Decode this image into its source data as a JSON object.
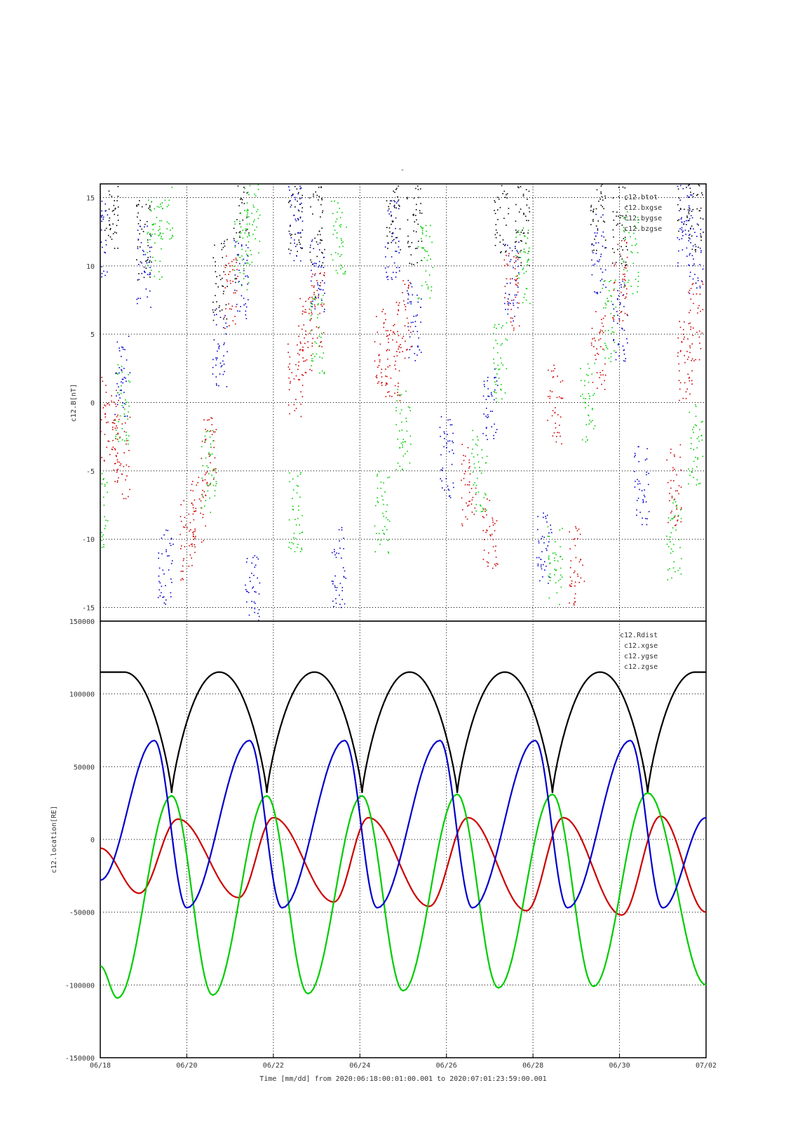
{
  "page_title_mark": "-",
  "colors": {
    "btot": "#000000",
    "bxgse": "#cc0000",
    "bygse": "#00cc00",
    "bzgse": "#0000cc",
    "grid": "#000000",
    "frame": "#000000"
  },
  "chart_data": [
    {
      "type": "scatter",
      "title": "-",
      "xlabel": "",
      "ylabel": "c12.B[nT]",
      "xlim": [
        "2020-06-18",
        "2020-07-02"
      ],
      "ylim": [
        -16,
        16
      ],
      "y_ticks": [
        -15,
        -10,
        -5,
        0,
        5,
        10,
        15
      ],
      "grid": true,
      "legend_position": "top-right",
      "series": [
        {
          "name": "c12.btot",
          "color": "#000000",
          "x": [
            "2020-06-18 06:00",
            "2020-06-19 00:00",
            "2020-06-20 18:00",
            "2020-06-21 06:00",
            "2020-06-22 12:00",
            "2020-06-23 00:00",
            "2020-06-24 18:00",
            "2020-06-25 06:00",
            "2020-06-27 06:00",
            "2020-06-27 18:00",
            "2020-06-29 12:00",
            "2020-06-30 00:00",
            "2020-07-01 12:00",
            "2020-07-01 18:00"
          ],
          "y": [
            14,
            12,
            9,
            15,
            14,
            13,
            14,
            13,
            14,
            13,
            14,
            13,
            15,
            14
          ]
        },
        {
          "name": "c12.bxgse",
          "color": "#cc0000",
          "x": [
            "2020-06-18 00:00",
            "2020-06-18 06:00",
            "2020-06-18 12:00",
            "2020-06-20 00:00",
            "2020-06-20 06:00",
            "2020-06-20 12:00",
            "2020-06-21 00:00",
            "2020-06-22 12:00",
            "2020-06-22 18:00",
            "2020-06-23 00:00",
            "2020-06-24 12:00",
            "2020-06-24 18:00",
            "2020-06-25 00:00",
            "2020-06-26 12:00",
            "2020-06-27 00:00",
            "2020-06-27 12:00",
            "2020-06-28 12:00",
            "2020-06-29 00:00",
            "2020-06-29 12:00",
            "2020-06-30 00:00",
            "2020-07-01 06:00",
            "2020-07-01 12:00",
            "2020-07-01 18:00"
          ],
          "y": [
            -1,
            -2,
            -4,
            -10,
            -8,
            -4,
            8,
            2,
            5,
            7,
            4,
            3,
            6,
            -6,
            -10,
            8,
            0,
            -12,
            4,
            9,
            -6,
            3,
            6
          ]
        },
        {
          "name": "c12.bygse",
          "color": "#00cc00",
          "x": [
            "2020-06-18 00:00",
            "2020-06-18 12:00",
            "2020-06-19 06:00",
            "2020-06-19 12:00",
            "2020-06-20 12:00",
            "2020-06-21 06:00",
            "2020-06-21 12:00",
            "2020-06-22 12:00",
            "2020-06-23 00:00",
            "2020-06-23 12:00",
            "2020-06-24 12:00",
            "2020-06-25 00:00",
            "2020-06-25 12:00",
            "2020-06-26 18:00",
            "2020-06-27 06:00",
            "2020-06-27 18:00",
            "2020-06-28 12:00",
            "2020-06-29 06:00",
            "2020-06-29 18:00",
            "2020-06-30 06:00",
            "2020-07-01 06:00",
            "2020-07-01 18:00"
          ],
          "y": [
            -8,
            0,
            12,
            15,
            -5,
            11,
            13,
            -8,
            5,
            12,
            -8,
            -2,
            10,
            -5,
            3,
            10,
            -12,
            0,
            6,
            11,
            -10,
            -3
          ]
        },
        {
          "name": "c12.bzgse",
          "color": "#0000cc",
          "x": [
            "2020-06-18 00:00",
            "2020-06-18 12:00",
            "2020-06-19 00:00",
            "2020-06-19 12:00",
            "2020-06-20 18:00",
            "2020-06-21 06:00",
            "2020-06-21 12:00",
            "2020-06-22 12:00",
            "2020-06-23 00:00",
            "2020-06-23 12:00",
            "2020-06-24 18:00",
            "2020-06-25 06:00",
            "2020-06-26 00:00",
            "2020-06-27 00:00",
            "2020-06-27 12:00",
            "2020-06-28 06:00",
            "2020-06-29 12:00",
            "2020-06-30 00:00",
            "2020-06-30 12:00",
            "2020-07-01 12:00",
            "2020-07-01 18:00"
          ],
          "y": [
            12,
            2,
            10,
            -12,
            4,
            9,
            -14,
            13,
            9,
            -12,
            12,
            6,
            -4,
            0,
            9,
            -11,
            11,
            6,
            -6,
            13,
            11
          ]
        }
      ]
    },
    {
      "type": "line",
      "title": "",
      "xlabel": "Time [mm/dd]  from 2020:06:18:00:01:00.001  to  2020:07:01:23:59:00.001",
      "ylabel": "c12.location[RE]",
      "xlim": [
        "2020-06-18",
        "2020-07-02"
      ],
      "x_ticks": [
        "06/18",
        "06/20",
        "06/22",
        "06/24",
        "06/26",
        "06/28",
        "06/30",
        "07/02"
      ],
      "ylim": [
        -150000,
        150000
      ],
      "y_ticks": [
        -150000,
        -100000,
        -50000,
        0,
        50000,
        100000,
        150000
      ],
      "grid": true,
      "legend_position": "top-right",
      "orbit_period_days": 2.2,
      "series": [
        {
          "name": "c12.Rdist",
          "color": "#000000",
          "description": "radial distance",
          "max": 115000,
          "min": 32000,
          "perigee_days": [
            1.65,
            3.85,
            6.05,
            8.25,
            10.45,
            12.65
          ]
        },
        {
          "name": "c12.xgse",
          "color": "#cc0000",
          "peaks": [
            {
              "day": 1.8,
              "value": 14000
            },
            {
              "day": 4.0,
              "value": 15000
            },
            {
              "day": 6.2,
              "value": 15000
            },
            {
              "day": 8.5,
              "value": 15000
            },
            {
              "day": 10.7,
              "value": 15000
            },
            {
              "day": 12.95,
              "value": 16000
            }
          ],
          "troughs": [
            {
              "day": 0.9,
              "value": -37000
            },
            {
              "day": 3.2,
              "value": -40000
            },
            {
              "day": 5.4,
              "value": -43000
            },
            {
              "day": 7.6,
              "value": -46000
            },
            {
              "day": 9.85,
              "value": -49000
            },
            {
              "day": 12.05,
              "value": -52000
            }
          ],
          "start": -6000,
          "end": -50000
        },
        {
          "name": "c12.ygse",
          "color": "#00cc00",
          "peaks": [
            {
              "day": 1.65,
              "value": 30000
            },
            {
              "day": 3.85,
              "value": 30000
            },
            {
              "day": 6.05,
              "value": 30000
            },
            {
              "day": 8.25,
              "value": 31000
            },
            {
              "day": 10.45,
              "value": 31000
            },
            {
              "day": 12.65,
              "value": 32000
            }
          ],
          "troughs": [
            {
              "day": 0.4,
              "value": -109000
            },
            {
              "day": 2.6,
              "value": -107000
            },
            {
              "day": 4.8,
              "value": -106000
            },
            {
              "day": 7.0,
              "value": -104000
            },
            {
              "day": 9.2,
              "value": -102000
            },
            {
              "day": 11.4,
              "value": -101000
            }
          ],
          "start": -87000,
          "end": -100000
        },
        {
          "name": "c12.zgse",
          "color": "#0000cc",
          "peaks": [
            {
              "day": 1.25,
              "value": 68000
            },
            {
              "day": 3.45,
              "value": 68000
            },
            {
              "day": 5.65,
              "value": 68000
            },
            {
              "day": 7.85,
              "value": 68000
            },
            {
              "day": 10.05,
              "value": 68000
            },
            {
              "day": 12.25,
              "value": 68000
            }
          ],
          "troughs": [
            {
              "day": 2.0,
              "value": -47000
            },
            {
              "day": 4.2,
              "value": -47000
            },
            {
              "day": 6.4,
              "value": -47000
            },
            {
              "day": 8.6,
              "value": -47000
            },
            {
              "day": 10.8,
              "value": -47000
            },
            {
              "day": 13.0,
              "value": -47000
            }
          ],
          "start": -28000,
          "end": 15000
        }
      ]
    }
  ]
}
